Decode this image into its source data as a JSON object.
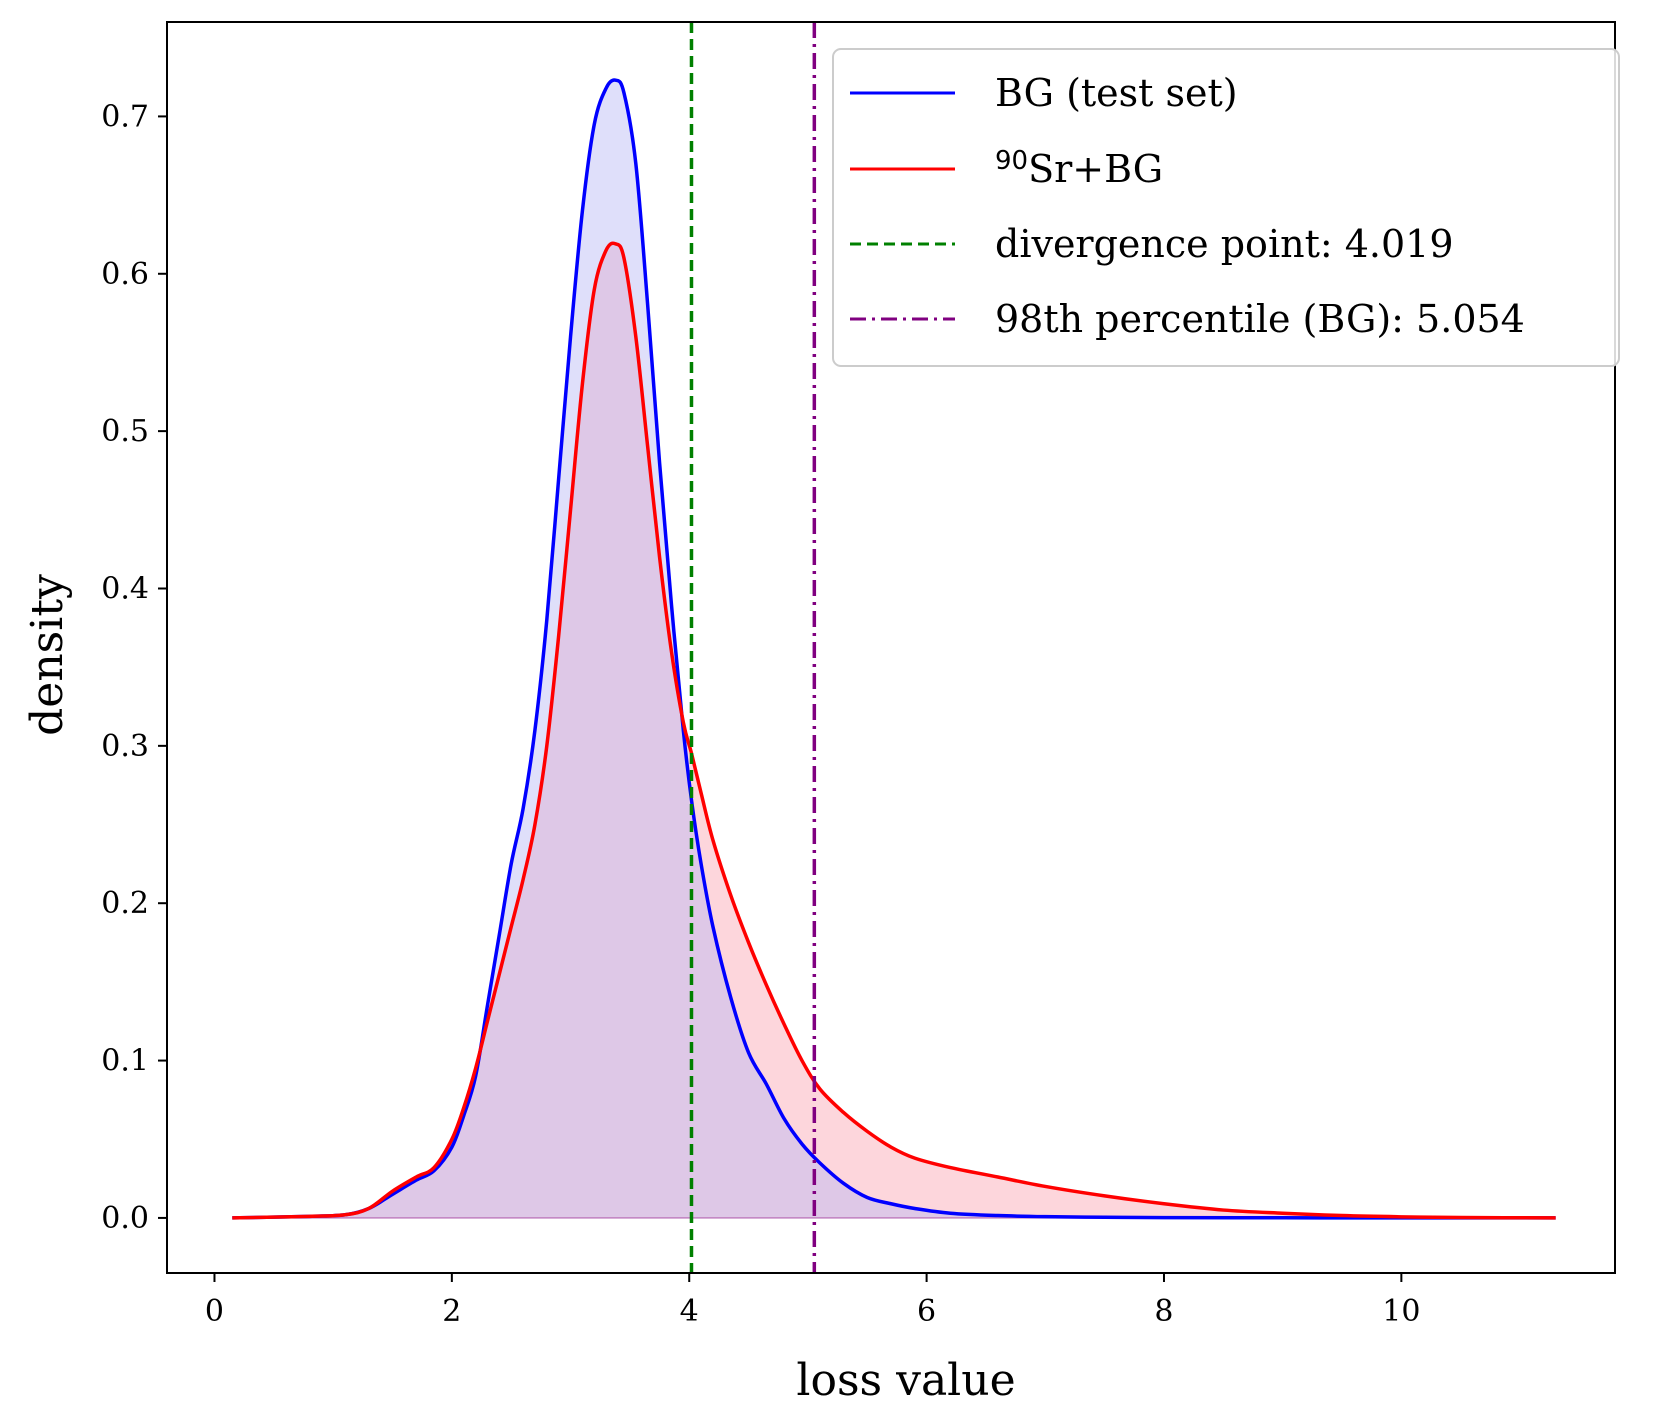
{
  "chart_data": {
    "type": "area",
    "title": "",
    "xlabel": "loss value",
    "ylabel": "density",
    "xlim": [
      -0.4,
      11.8
    ],
    "ylim": [
      -0.035,
      0.76
    ],
    "xticks": [
      0,
      2,
      4,
      6,
      8,
      10
    ],
    "yticks": [
      0.0,
      0.1,
      0.2,
      0.3,
      0.4,
      0.5,
      0.6,
      0.7
    ],
    "xtick_labels": [
      "0",
      "2",
      "4",
      "6",
      "8",
      "10"
    ],
    "ytick_labels": [
      "0.0",
      "0.1",
      "0.2",
      "0.3",
      "0.4",
      "0.5",
      "0.6",
      "0.7"
    ],
    "legend_position": "top-right",
    "series": [
      {
        "name": "BG (test set)",
        "color": "#0000ff",
        "fill": "#e1e1fc",
        "x": [
          0.15,
          0.8,
          1.1,
          1.3,
          1.5,
          1.7,
          1.85,
          2.0,
          2.1,
          2.2,
          2.3,
          2.4,
          2.5,
          2.6,
          2.7,
          2.8,
          2.9,
          3.0,
          3.1,
          3.2,
          3.3,
          3.38,
          3.45,
          3.55,
          3.65,
          3.75,
          3.85,
          3.95,
          4.02,
          4.1,
          4.2,
          4.35,
          4.5,
          4.65,
          4.8,
          4.95,
          5.1,
          5.3,
          5.5,
          5.7,
          5.9,
          6.2,
          6.6,
          7.0,
          7.5,
          8.0,
          9.0,
          10.0,
          11.3
        ],
        "values": [
          0.0,
          0.001,
          0.002,
          0.006,
          0.015,
          0.024,
          0.03,
          0.045,
          0.065,
          0.09,
          0.135,
          0.18,
          0.225,
          0.26,
          0.31,
          0.38,
          0.47,
          0.56,
          0.64,
          0.695,
          0.718,
          0.723,
          0.715,
          0.67,
          0.58,
          0.48,
          0.39,
          0.31,
          0.265,
          0.225,
          0.185,
          0.14,
          0.105,
          0.085,
          0.063,
          0.047,
          0.035,
          0.022,
          0.013,
          0.009,
          0.006,
          0.003,
          0.0015,
          0.0008,
          0.0004,
          0.0002,
          0.0001,
          0.0,
          0.0
        ]
      },
      {
        "name": "⁹⁰Sr+BG",
        "color": "#ff0000",
        "fill": "#fcd9df",
        "x": [
          0.15,
          0.8,
          1.1,
          1.3,
          1.5,
          1.7,
          1.85,
          2.0,
          2.1,
          2.2,
          2.3,
          2.4,
          2.5,
          2.6,
          2.7,
          2.8,
          2.9,
          3.0,
          3.1,
          3.2,
          3.3,
          3.38,
          3.45,
          3.55,
          3.65,
          3.75,
          3.85,
          3.95,
          4.02,
          4.1,
          4.2,
          4.35,
          4.5,
          4.65,
          4.8,
          4.95,
          5.1,
          5.3,
          5.5,
          5.7,
          5.9,
          6.2,
          6.6,
          7.0,
          7.5,
          8.0,
          8.5,
          9.0,
          9.5,
          10.0,
          10.5,
          11.3
        ],
        "values": [
          0.0,
          0.001,
          0.002,
          0.006,
          0.017,
          0.026,
          0.032,
          0.05,
          0.07,
          0.095,
          0.125,
          0.155,
          0.185,
          0.215,
          0.25,
          0.3,
          0.37,
          0.45,
          0.53,
          0.59,
          0.615,
          0.619,
          0.61,
          0.56,
          0.49,
          0.42,
          0.36,
          0.315,
          0.295,
          0.27,
          0.24,
          0.205,
          0.175,
          0.148,
          0.123,
          0.1,
          0.082,
          0.067,
          0.055,
          0.045,
          0.038,
          0.032,
          0.026,
          0.02,
          0.014,
          0.009,
          0.005,
          0.003,
          0.0015,
          0.0007,
          0.0003,
          0.0
        ]
      }
    ],
    "vlines": [
      {
        "name": "divergence point: 4.019",
        "x": 4.019,
        "color": "#008000",
        "style": "dashed"
      },
      {
        "name": "98th percentile (BG): 5.054",
        "x": 5.054,
        "color": "#800080",
        "style": "dashdot"
      }
    ],
    "legend": {
      "bg_prefix": "BG (test set)",
      "sr_superscript": "90",
      "sr_text": "Sr+BG",
      "divergence": "divergence point: 4.019",
      "percentile": "98th percentile (BG): 5.054"
    }
  }
}
